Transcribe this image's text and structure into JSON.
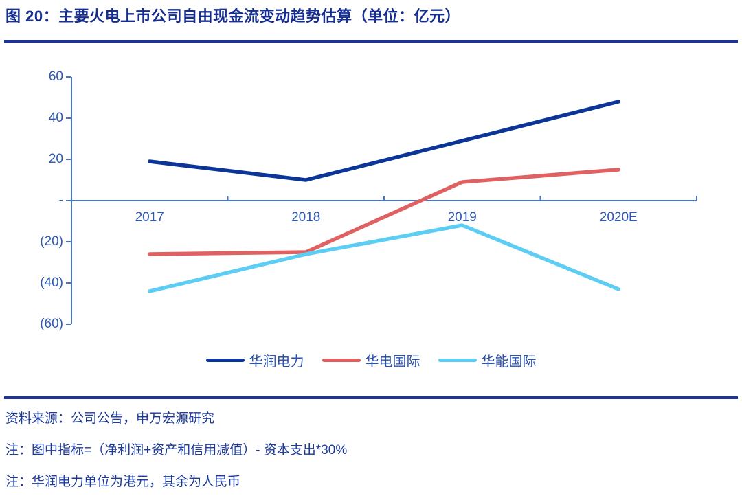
{
  "header": {
    "title": "图 20：主要火电上市公司自由现金流变动趋势估算（单位：亿元）"
  },
  "chart_data": {
    "type": "line",
    "title": "主要火电上市公司自由现金流变动趋势估算",
    "unit": "亿元",
    "categories": [
      "2017",
      "2018",
      "2019",
      "2020E"
    ],
    "series": [
      {
        "name": "华润电力",
        "color": "#0b3596",
        "values": [
          19,
          10,
          29,
          48
        ]
      },
      {
        "name": "华电国际",
        "color": "#e06161",
        "values": [
          -26,
          -25,
          9,
          15
        ]
      },
      {
        "name": "华能国际",
        "color": "#5ecdf4",
        "values": [
          -44,
          -26,
          -12,
          -43
        ]
      }
    ],
    "ylim": [
      -60,
      60
    ],
    "ytick_step": 20,
    "ytick_values": [
      60,
      40,
      20,
      0,
      -20,
      -40,
      -60
    ],
    "ytick_labels": [
      "60",
      "40",
      "20",
      "-",
      "(20)",
      "(40)",
      "(60)"
    ],
    "xlabel": "",
    "ylabel": "",
    "grid": false,
    "legend_position": "bottom"
  },
  "footer": {
    "source": "资料来源：公司公告，申万宏源研究",
    "note1": "注：图中指标=（净利润+资产和信用减值）- 资本支出*30%",
    "note2": "注：华润电力单位为港元，其余为人民币"
  },
  "colors": {
    "title_text": "#162e8f",
    "divider": "#1c339b",
    "note_text": "#1c3a9c",
    "axis_line": "#4a74c6",
    "axis_label_text": "#2d58b6",
    "legend_label_text": "#2a52b0",
    "series_navy": "#0b3596",
    "series_red": "#e06161",
    "series_cyan": "#5ecdf4"
  }
}
